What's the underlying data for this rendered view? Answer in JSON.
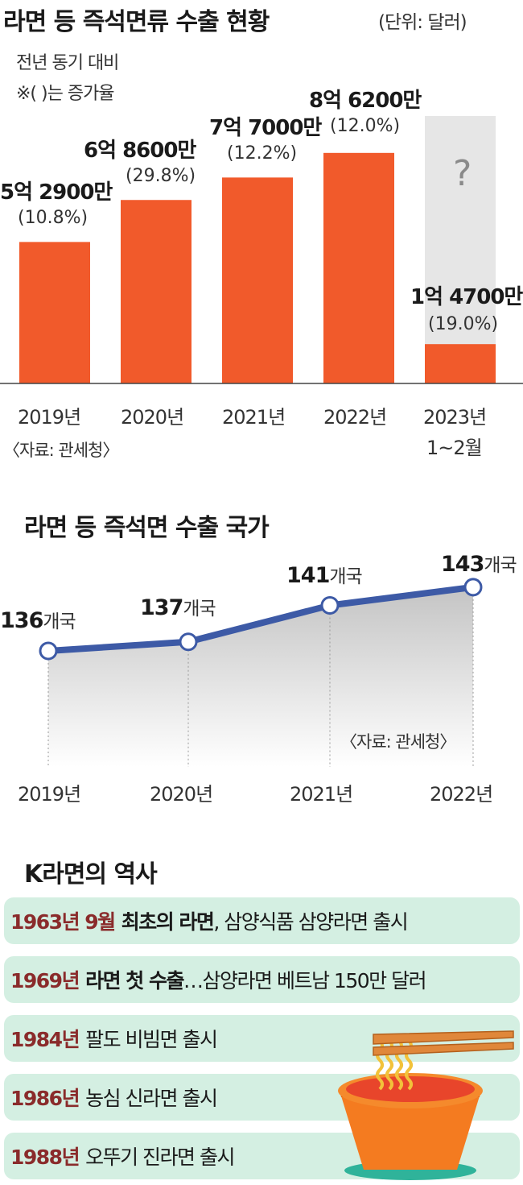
{
  "bar_chart": {
    "title": "라면 등 즉석면류 수출 현황",
    "unit": "(단위: 달러)",
    "subtitle_1": "전년 동기 대비",
    "subtitle_2": "※( )는 증가율",
    "source": "〈자료: 관세청〉",
    "mystery_mark": "?",
    "bars": [
      {
        "x_label": "2019년",
        "x_label_2": "",
        "value_text": "5억 2900만",
        "pct_text": "(10.8%)"
      },
      {
        "x_label": "2020년",
        "x_label_2": "",
        "value_text": "6억 8600만",
        "pct_text": "(29.8%)"
      },
      {
        "x_label": "2021년",
        "x_label_2": "",
        "value_text": "7억 7000만",
        "pct_text": "(12.2%)"
      },
      {
        "x_label": "2022년",
        "x_label_2": "",
        "value_text": "8억 6200만",
        "pct_text": "(12.0%)"
      },
      {
        "x_label": "2023년",
        "x_label_2": "1~2월",
        "value_text": "1억 4700만",
        "pct_text": "(19.0%)"
      }
    ]
  },
  "line_chart": {
    "title": "라면 등 즉석면 수출 국가",
    "source": "〈자료: 관세청〉",
    "unit_suffix": "개국",
    "points": [
      {
        "x_label": "2019년",
        "value_label": "136"
      },
      {
        "x_label": "2020년",
        "value_label": "137"
      },
      {
        "x_label": "2021년",
        "value_label": "141"
      },
      {
        "x_label": "2022년",
        "value_label": "143"
      }
    ]
  },
  "chart_data": [
    {
      "type": "bar",
      "title": "라면 등 즉석면류 수출 현황",
      "ylabel": "(단위: 달러)",
      "categories": [
        "2019년",
        "2020년",
        "2021년",
        "2022년",
        "2023년 1~2월"
      ],
      "values": [
        529000000,
        686000000,
        770000000,
        862000000,
        147000000
      ],
      "growth_pct": [
        10.8,
        29.8,
        12.2,
        12.0,
        19.0
      ],
      "ylim": [
        0,
        1000000000
      ],
      "grid": false,
      "colors": {
        "bar": "#f15a2b",
        "placeholder": "#e6e6e6"
      }
    },
    {
      "type": "line",
      "title": "라면 등 즉석면 수출 국가",
      "categories": [
        "2019년",
        "2020년",
        "2021년",
        "2022년"
      ],
      "values": [
        136,
        137,
        141,
        143
      ],
      "ylim": [
        130,
        146
      ],
      "grid": false,
      "colors": {
        "line": "#3d5aa6",
        "fill": "#cfcfcf"
      }
    }
  ],
  "history": {
    "title": "K라면의 역사",
    "items": [
      {
        "year": "1963년 9월",
        "emph": "최초의 라면",
        "rest": ", 삼양식품 삼양라면 출시"
      },
      {
        "year": "1969년",
        "emph": "라면 첫 수출",
        "rest": "…삼양라면 베트남 150만 달러"
      },
      {
        "year": "1984년",
        "emph": "",
        "rest": "팔도 비빔면 출시"
      },
      {
        "year": "1986년",
        "emph": "",
        "rest": "농심 신라면 출시"
      },
      {
        "year": "1988년",
        "emph": "",
        "rest": "오뚜기 진라면 출시"
      }
    ]
  },
  "colors": {
    "bar": "#f15a2b",
    "placeholder": "#e6e6e6",
    "line": "#3d5aa6",
    "history_bg": "#d4efe2",
    "history_year": "#8a2b2b"
  },
  "illustration_icon": "noodle-cup-icon"
}
